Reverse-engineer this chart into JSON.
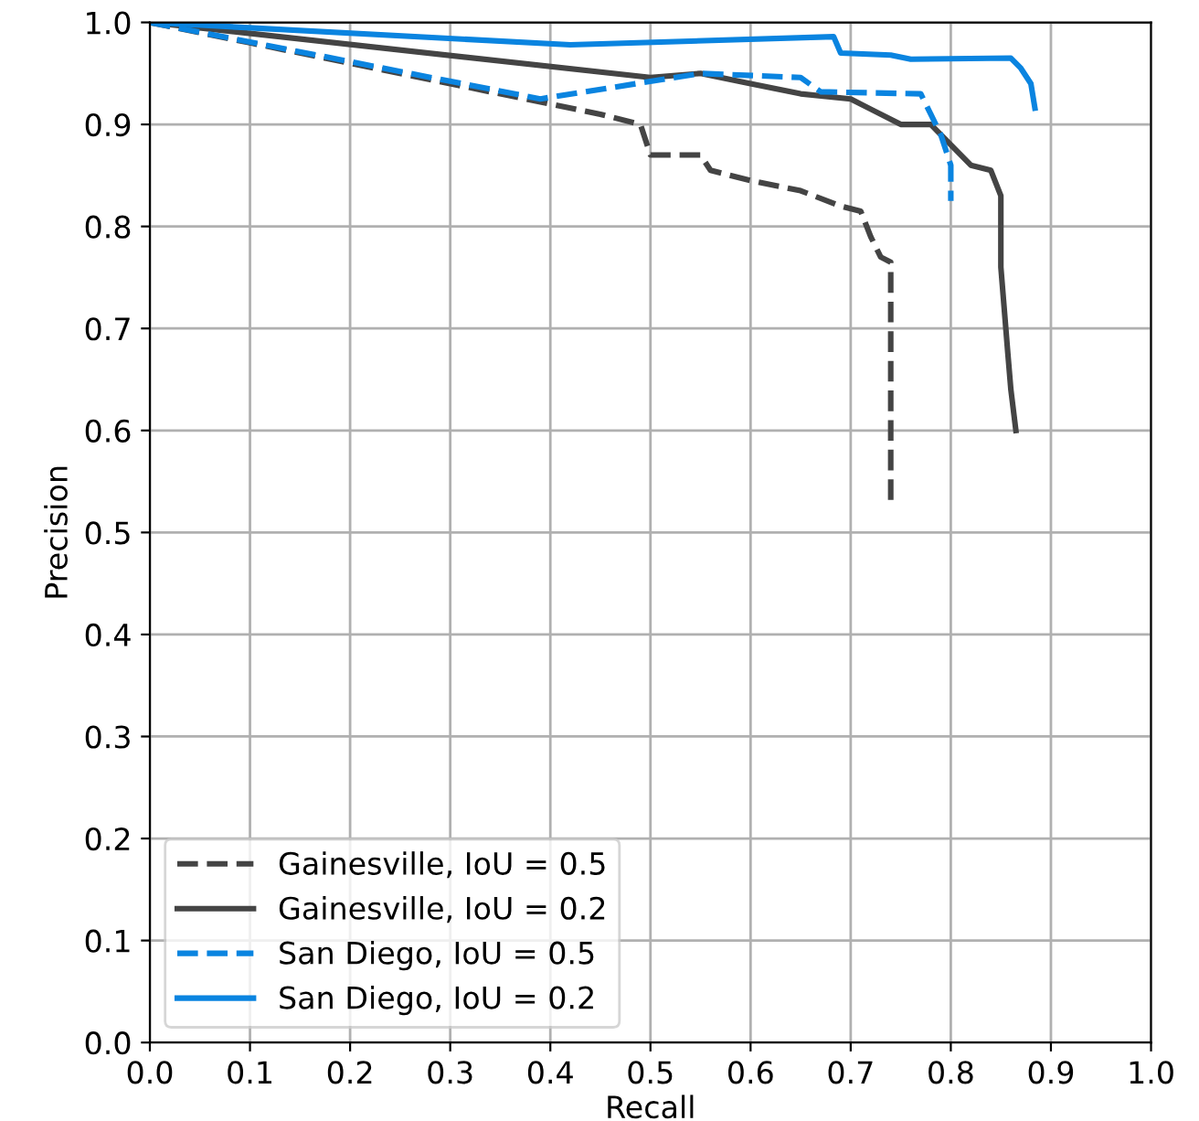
{
  "chart_data": {
    "type": "line",
    "xlabel": "Recall",
    "ylabel": "Precision",
    "xlim": [
      0.0,
      1.0
    ],
    "ylim": [
      0.0,
      1.0
    ],
    "xticks": [
      {
        "value": 0,
        "label": "0.0"
      },
      0.1,
      0.2,
      0.3,
      0.4,
      0.5,
      0.6,
      0.7,
      0.8,
      0.9,
      {
        "value": 1,
        "label": "1.0"
      }
    ],
    "yticks": [
      {
        "value": 0,
        "label": "0.0"
      },
      0.1,
      0.2,
      0.3,
      0.4,
      0.5,
      0.6,
      0.7,
      0.8,
      0.9,
      {
        "value": 1,
        "label": "1.0"
      }
    ],
    "grid": true,
    "legend": "bottom left",
    "series": [
      {
        "name": "Gainesville, IoU = 0.5",
        "color": "#444444",
        "line_style": "dashed",
        "x": [
          0,
          0.1,
          0.3,
          0.45,
          0.49,
          0.5,
          0.55,
          0.56,
          0.6,
          0.65,
          0.69,
          0.71,
          0.72,
          0.73,
          0.74,
          0.74
        ],
        "values": [
          1.0,
          0.98,
          0.94,
          0.91,
          0.9,
          0.87,
          0.87,
          0.855,
          0.845,
          0.835,
          0.82,
          0.815,
          0.79,
          0.77,
          0.765,
          0.53
        ]
      },
      {
        "name": "Gainesville, IoU = 0.2",
        "color": "#444444",
        "line_style": "solid",
        "x": [
          0,
          0.5,
          0.55,
          0.6,
          0.65,
          0.7,
          0.72,
          0.75,
          0.78,
          0.8,
          0.82,
          0.84,
          0.85,
          0.85,
          0.857,
          0.86,
          0.865
        ],
        "values": [
          1.0,
          0.946,
          0.95,
          0.94,
          0.93,
          0.925,
          0.915,
          0.9,
          0.9,
          0.88,
          0.86,
          0.855,
          0.83,
          0.76,
          0.675,
          0.64,
          0.6
        ]
      },
      {
        "name": "San Diego, IoU = 0.5",
        "color": "#0a84e0",
        "line_style": "dashed",
        "x": [
          0,
          0.39,
          0.55,
          0.65,
          0.67,
          0.77,
          0.78,
          0.79,
          0.8,
          0.8
        ],
        "values": [
          1.0,
          0.925,
          0.95,
          0.946,
          0.932,
          0.93,
          0.91,
          0.89,
          0.86,
          0.825
        ]
      },
      {
        "name": "San Diego, IoU = 0.2",
        "color": "#0a84e0",
        "line_style": "solid",
        "x": [
          0,
          0.42,
          0.683,
          0.69,
          0.74,
          0.76,
          0.86,
          0.87,
          0.88,
          0.884
        ],
        "values": [
          1.0,
          0.978,
          0.986,
          0.97,
          0.968,
          0.964,
          0.965,
          0.955,
          0.94,
          0.916
        ]
      }
    ]
  }
}
